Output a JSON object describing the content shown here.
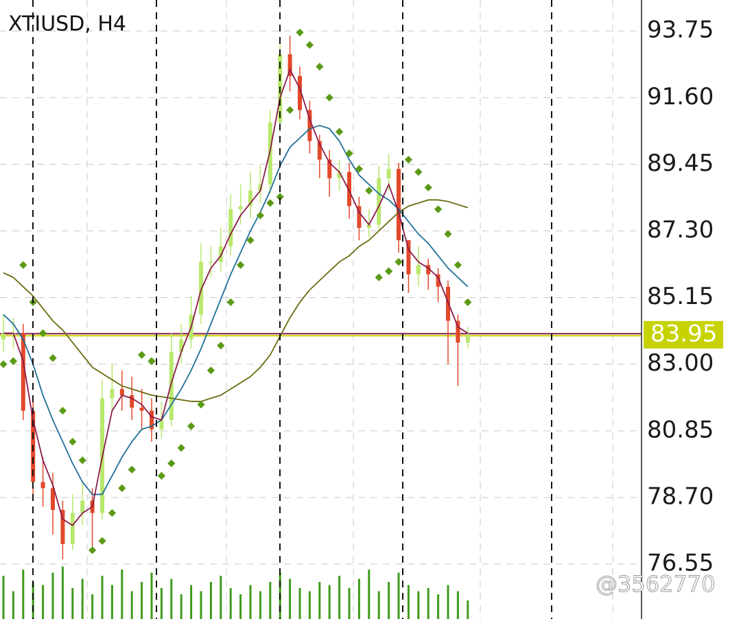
{
  "chart_data": {
    "type": "candlestick",
    "title": "XTIUSD, H4",
    "ylim": [
      74.78,
      94.75
    ],
    "yticks": [
      93.75,
      {
        "value": 91.6,
        "label": "91.60"
      },
      89.45,
      {
        "value": 87.3,
        "label": "87.30"
      },
      85.15,
      {
        "value": 83,
        "label": "83.00"
      },
      80.85,
      {
        "value": 78.7,
        "label": "78.70"
      },
      76.55
    ],
    "grid": true,
    "candles": {
      "up_color": "#b8e86c",
      "down_color": "#e2482a",
      "open": [
        83.8,
        84.0,
        84.0,
        81.5,
        79.2,
        79.0,
        78.3,
        77.2,
        78.2,
        78.6,
        78.2,
        81.9,
        82.2,
        82.0,
        81.6,
        81.5,
        80.9,
        81.2,
        83.4,
        83.8,
        84.6,
        86.3,
        86.3,
        86.8,
        88.0,
        88.1,
        88.6,
        88.8,
        90.8,
        93.0,
        92.3,
        91.2,
        90.2,
        89.6,
        89.0,
        89.2,
        88.1,
        87.4,
        87.5,
        89.0,
        89.3,
        87.0,
        85.9,
        86.2,
        85.9,
        85.5,
        84.4,
        83.7
      ],
      "high": [
        84.6,
        84.5,
        84.3,
        82.0,
        80.0,
        79.5,
        78.6,
        78.8,
        79.2,
        79.0,
        82.5,
        83.0,
        82.8,
        82.6,
        82.2,
        81.9,
        81.8,
        84.0,
        84.3,
        85.2,
        86.9,
        86.8,
        87.4,
        88.5,
        88.8,
        89.2,
        89.4,
        91.2,
        93.3,
        93.6,
        92.6,
        91.5,
        90.4,
        89.9,
        89.6,
        89.5,
        88.4,
        88.0,
        89.4,
        89.8,
        89.5,
        86.5,
        86.8,
        86.4,
        86.1,
        85.7,
        84.6,
        84.2
      ],
      "low": [
        83.4,
        83.5,
        81.2,
        78.7,
        78.4,
        77.5,
        76.7,
        77.0,
        77.8,
        76.9,
        78.0,
        81.5,
        81.5,
        81.2,
        80.9,
        80.5,
        80.6,
        81.0,
        83.0,
        83.5,
        84.3,
        85.8,
        86.0,
        86.5,
        87.5,
        87.7,
        88.2,
        88.5,
        90.5,
        91.8,
        90.9,
        89.8,
        89.0,
        88.4,
        88.6,
        87.7,
        87.0,
        87.1,
        87.3,
        88.6,
        86.6,
        85.3,
        85.5,
        85.4,
        85.0,
        83.0,
        82.3,
        83.5
      ],
      "close": [
        84.0,
        84.0,
        81.5,
        79.2,
        79.0,
        78.3,
        77.2,
        78.2,
        78.6,
        78.2,
        81.9,
        82.2,
        82.0,
        81.6,
        81.5,
        80.9,
        81.2,
        83.4,
        83.8,
        84.6,
        86.3,
        86.3,
        86.8,
        88.0,
        88.1,
        88.6,
        88.8,
        90.8,
        93.0,
        92.3,
        91.2,
        90.2,
        89.6,
        89.0,
        89.2,
        88.1,
        87.4,
        87.5,
        89.0,
        89.3,
        87.0,
        85.9,
        86.2,
        85.9,
        85.5,
        84.4,
        83.7,
        83.95
      ]
    },
    "lines": [
      {
        "color": "#6b6b10",
        "values": [
          85.95,
          85.8,
          85.5,
          85.2,
          84.8,
          84.4,
          84.1,
          83.7,
          83.3,
          82.9,
          82.7,
          82.5,
          82.3,
          82.2,
          82.1,
          82.0,
          81.95,
          81.9,
          81.85,
          81.8,
          81.8,
          81.9,
          82.0,
          82.2,
          82.4,
          82.6,
          82.9,
          83.3,
          83.9,
          84.5,
          85.0,
          85.4,
          85.7,
          86.0,
          86.3,
          86.5,
          86.8,
          87.0,
          87.3,
          87.6,
          87.9,
          88.1,
          88.2,
          88.3,
          88.3,
          88.25,
          88.15,
          88.05
        ]
      },
      {
        "color": "#1f6f9a",
        "values": [
          84.6,
          84.3,
          83.8,
          83.0,
          82.0,
          81.2,
          80.5,
          79.8,
          79.2,
          78.8,
          78.8,
          79.4,
          80.0,
          80.5,
          80.9,
          81.0,
          81.2,
          81.7,
          82.2,
          82.8,
          83.5,
          84.3,
          85.1,
          85.9,
          86.6,
          87.3,
          87.9,
          88.6,
          89.4,
          90.0,
          90.3,
          90.6,
          90.7,
          90.6,
          90.2,
          89.6,
          89.1,
          88.8,
          88.5,
          88.3,
          88.0,
          87.6,
          87.2,
          86.9,
          86.5,
          86.1,
          85.8,
          85.5
        ]
      },
      {
        "color": "#8a1a4a",
        "values": [
          84.0,
          84.0,
          83.1,
          81.2,
          79.9,
          79.1,
          78.0,
          77.8,
          78.2,
          78.4,
          80.0,
          81.5,
          82.0,
          81.9,
          81.7,
          81.3,
          81.2,
          82.4,
          83.4,
          84.2,
          85.4,
          86.1,
          86.5,
          87.2,
          87.8,
          88.2,
          88.6,
          89.9,
          91.6,
          92.5,
          91.9,
          90.9,
          90.1,
          89.5,
          89.2,
          88.6,
          87.9,
          87.5,
          88.1,
          88.8,
          87.9,
          86.7,
          86.3,
          86.1,
          85.8,
          85.0,
          84.2,
          84.0
        ]
      }
    ],
    "sar": {
      "color": "#5c9a16",
      "values": [
        83.0,
        83.1,
        86.2,
        85.0,
        84.0,
        83.2,
        81.5,
        80.5,
        79.9,
        77.0,
        77.3,
        78.2,
        79.0,
        79.6,
        83.3,
        83.1,
        79.4,
        79.8,
        80.3,
        81.0,
        81.7,
        82.8,
        83.6,
        85.0,
        86.2,
        87.0,
        87.8,
        88.2,
        88.4,
        91.2,
        93.7,
        93.3,
        92.6,
        91.6,
        90.5,
        89.8,
        89.3,
        88.6,
        85.8,
        86.0,
        86.3,
        89.6,
        89.2,
        88.7,
        88.0,
        87.2,
        86.2,
        85.0
      ]
    },
    "volume": {
      "color": "#3e9a1c",
      "lim": [
        0,
        100
      ],
      "values": [
        70,
        45,
        80,
        60,
        55,
        75,
        85,
        50,
        65,
        40,
        70,
        55,
        80,
        45,
        60,
        75,
        50,
        65,
        40,
        55,
        45,
        60,
        70,
        50,
        40,
        55,
        45,
        60,
        75,
        65,
        50,
        45,
        60,
        55,
        70,
        50,
        65,
        80,
        45,
        60,
        75,
        55,
        45,
        50,
        40,
        55,
        45,
        30
      ]
    },
    "current_price": 83.95,
    "current_price_color": "#c6d300",
    "watermark": "@3562770"
  }
}
